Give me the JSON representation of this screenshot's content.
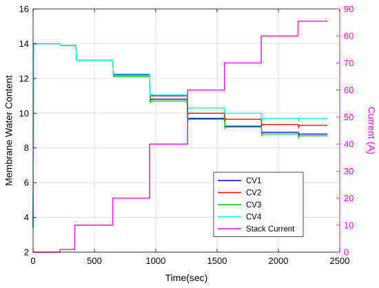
{
  "chart_data": {
    "type": "line",
    "xlabel": "Time(sec)",
    "ylabel_left": "Membrane Water Content",
    "ylabel_right": "Current (A)",
    "xlim": [
      0,
      2500
    ],
    "ylim_left": [
      2,
      16
    ],
    "ylim_right": [
      0,
      90
    ],
    "xticks": [
      0,
      500,
      1000,
      1500,
      2000,
      2500
    ],
    "yticks_left": [
      2,
      4,
      6,
      8,
      10,
      12,
      14,
      16
    ],
    "yticks_right": [
      0,
      10,
      20,
      30,
      40,
      50,
      60,
      70,
      80,
      90
    ],
    "grid": true,
    "legend_position": "lower-right",
    "colors": {
      "left_axis": "#000000",
      "right_axis": "#ff00ff",
      "grid": "#dddddd"
    },
    "series": [
      {
        "name": "CV1",
        "axis": "left",
        "color": "#0000ff",
        "x": [
          0,
          5,
          220,
          225,
          350,
          355,
          650,
          655,
          950,
          955,
          960,
          1255,
          1260,
          1270,
          1560,
          1565,
          1570,
          1860,
          1865,
          1870,
          2160,
          2165,
          2170,
          2400
        ],
        "y": [
          3.4,
          14,
          14,
          13.9,
          13.9,
          13.05,
          13.05,
          12.2,
          12.2,
          10.7,
          10.8,
          10.8,
          9.6,
          9.7,
          9.7,
          9.15,
          9.25,
          9.25,
          8.8,
          8.9,
          8.9,
          8.7,
          8.8,
          8.8
        ]
      },
      {
        "name": "CV2",
        "axis": "left",
        "color": "#ff0000",
        "x": [
          0,
          5,
          220,
          225,
          350,
          355,
          650,
          655,
          950,
          955,
          960,
          1255,
          1260,
          1270,
          1560,
          1565,
          1570,
          1860,
          1865,
          1870,
          2160,
          2165,
          2170,
          2400
        ],
        "y": [
          3.4,
          14,
          14,
          13.9,
          13.9,
          13.05,
          13.05,
          12.25,
          12.25,
          10.9,
          11,
          11,
          9.9,
          10,
          10,
          9.55,
          9.65,
          9.65,
          9.25,
          9.35,
          9.35,
          9.2,
          9.3,
          9.3
        ]
      },
      {
        "name": "CV3",
        "axis": "left",
        "color": "#00cc00",
        "x": [
          0,
          5,
          220,
          225,
          350,
          355,
          650,
          655,
          950,
          955,
          960,
          1255,
          1260,
          1270,
          1560,
          1565,
          1570,
          1860,
          1865,
          1870,
          2160,
          2165,
          2170,
          2400
        ],
        "y": [
          3.4,
          14,
          14,
          13.9,
          13.9,
          13.05,
          13.05,
          12.1,
          12.1,
          10.6,
          10.7,
          10.7,
          9.55,
          9.65,
          9.65,
          9.1,
          9.2,
          9.2,
          8.7,
          8.8,
          8.8,
          8.6,
          8.7,
          8.7
        ]
      },
      {
        "name": "CV4",
        "axis": "left",
        "color": "#00ffff",
        "x": [
          0,
          5,
          220,
          225,
          350,
          355,
          650,
          655,
          950,
          955,
          960,
          1255,
          1260,
          1270,
          1560,
          1565,
          1570,
          1860,
          1865,
          1870,
          2160,
          2165,
          2170,
          2400
        ],
        "y": [
          3.4,
          14,
          14,
          13.9,
          13.9,
          13.05,
          13.05,
          12.25,
          12.25,
          11,
          11.05,
          11.05,
          10.2,
          10.3,
          10.3,
          9.9,
          10,
          10,
          9.6,
          9.7,
          9.7,
          9.6,
          9.7,
          9.7
        ]
      },
      {
        "name": "Stack Current",
        "axis": "right",
        "color": "#ff00ff",
        "x": [
          0,
          220,
          220,
          340,
          340,
          650,
          650,
          950,
          950,
          1260,
          1260,
          1560,
          1560,
          1860,
          1860,
          2160,
          2160,
          2400
        ],
        "y": [
          0,
          0,
          1,
          1,
          10,
          10,
          20,
          20,
          40,
          40,
          60,
          60,
          70,
          70,
          80,
          80,
          85.5,
          85.5
        ]
      }
    ]
  }
}
